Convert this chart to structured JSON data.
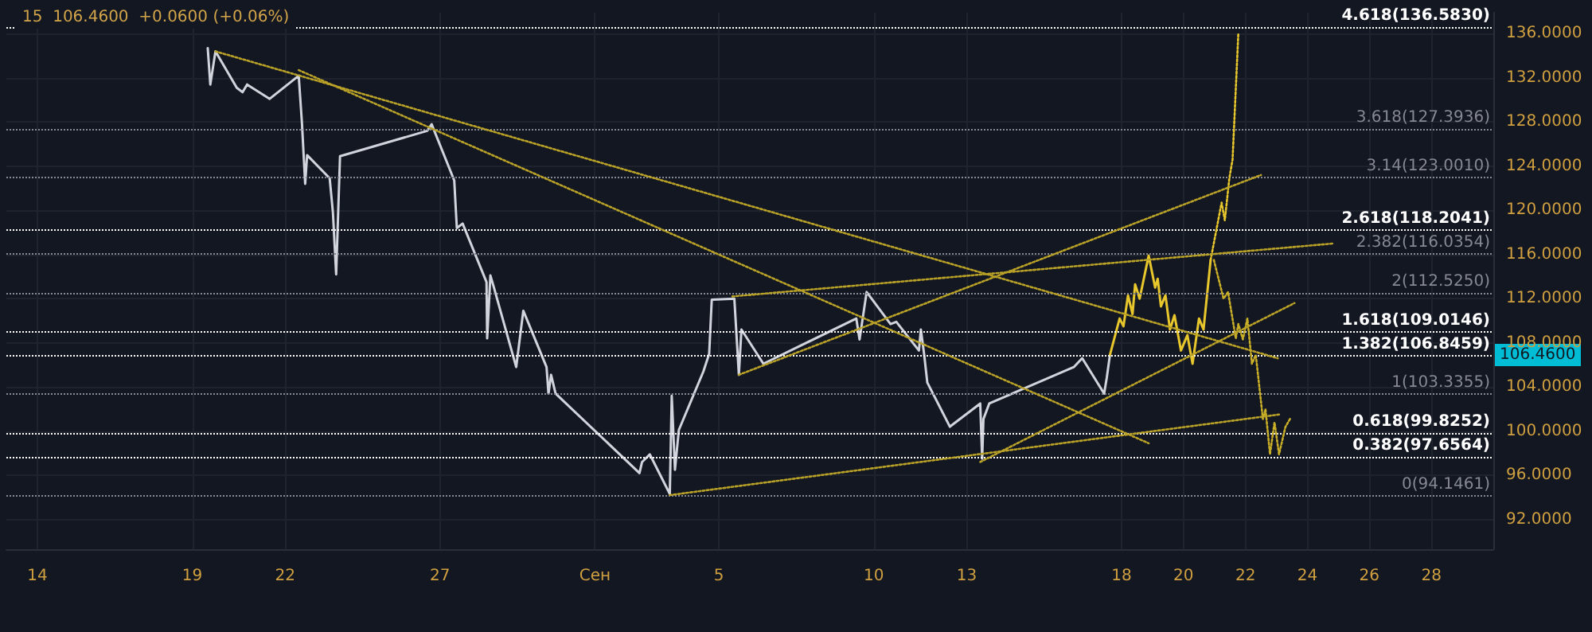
{
  "chart_data": {
    "type": "line",
    "title": "15  106.4600  +0.0600 (+0.06%)",
    "xlim": [
      "--08-13",
      "--09-30"
    ],
    "xticks": [
      {
        "value": "--08-14",
        "label": "14"
      },
      {
        "value": "--08-19",
        "label": "19"
      },
      {
        "value": "--08-22",
        "label": "22"
      },
      {
        "value": "--08-27",
        "label": "27"
      },
      {
        "value": "--09-01",
        "label": "Сен"
      },
      {
        "value": "--09-05",
        "label": "5"
      },
      {
        "value": "--09-10",
        "label": "10"
      },
      {
        "value": "--09-13",
        "label": "13"
      },
      {
        "value": "--09-18",
        "label": "18"
      },
      {
        "value": "--09-20",
        "label": "20"
      },
      {
        "value": "--09-22",
        "label": "22"
      },
      {
        "value": "--09-24",
        "label": "24"
      },
      {
        "value": "--09-26",
        "label": "26"
      },
      {
        "value": "--09-28",
        "label": "28"
      }
    ],
    "ylim": [
      89.3,
      137.9
    ],
    "yticks": [
      {
        "value": 92,
        "label": "92.0000"
      },
      {
        "value": 96,
        "label": "96.0000"
      },
      {
        "value": 100,
        "label": "100.0000"
      },
      {
        "value": 104,
        "label": "104.0000"
      },
      {
        "value": 108,
        "label": "108.0000"
      },
      {
        "value": 112,
        "label": "112.0000"
      },
      {
        "value": 116,
        "label": "116.0000"
      },
      {
        "value": 120,
        "label": "120.0000"
      },
      {
        "value": 124,
        "label": "124.0000"
      },
      {
        "value": 128,
        "label": "128.0000"
      },
      {
        "value": 132,
        "label": "132.0000"
      },
      {
        "value": 136,
        "label": "136.0000"
      }
    ],
    "grid": true,
    "marker": "none",
    "series": [
      {
        "color": "#d1d4dc",
        "line_style": "solid",
        "x": [
          "--08-19T12:00",
          "--08-19T14:00",
          "--08-19T18:00",
          "--08-20T10:30",
          "--08-20T15:00",
          "--08-20T18:30",
          "--08-21T12:00",
          "--08-22T10:30",
          "--08-22T13:00",
          "--08-22T15:30",
          "--08-22T17:00",
          "--08-23T10:30",
          "--08-23T13:00",
          "--08-23T15:30",
          "--08-23T18:30",
          "--08-26T14:00",
          "--08-26T17:30",
          "--08-27T11:00",
          "--08-27T13:00",
          "--08-27T17:30",
          "--08-28T12:00",
          "--08-28T12:30",
          "--08-28T15:00",
          "--08-28T17:30",
          "--08-29T11:00",
          "--08-29T16:30",
          "--08-30T10:30",
          "--08-30T12:00",
          "--08-30T14:00",
          "--08-30T17:30",
          "--09-02T10:30",
          "--09-02T12:30",
          "--09-02T18:30",
          "--09-03T10:00",
          "--09-03T11:30",
          "--09-03T14:00",
          "--09-03T17:00",
          "--09-04T12:00",
          "--09-04T16:30",
          "--09-04T18:30",
          "--09-05T12:00",
          "--09-05T15:30",
          "--09-05T17:30",
          "--09-06T10:30",
          "--09-09T10:30",
          "--09-09T13:00",
          "--09-09T18:30",
          "--09-10T13:00",
          "--09-10T17:30",
          "--09-11T11:00",
          "--09-11T12:30",
          "--09-11T15:00",
          "--09-11T17:30",
          "--09-12T11:00",
          "--09-13T10:30",
          "--09-13T12:00",
          "--09-13T13:00",
          "--09-13T17:30",
          "--09-16T11:00",
          "--09-16T17:30",
          "--09-17T10:30",
          "--09-17T12:30",
          "--09-17T15:00"
        ],
        "values": [
          134.7,
          131.4,
          134.4,
          131.1,
          130.7,
          131.4,
          130.1,
          132.2,
          127.9,
          122.4,
          125,
          122.9,
          119.8,
          114.2,
          124.9,
          127.2,
          127.8,
          122.7,
          118.4,
          118.8,
          113.5,
          108.4,
          114.1,
          113.1,
          105.8,
          110.9,
          105.8,
          103.4,
          105.1,
          103.4,
          96.2,
          97.2,
          97.9,
          94.3,
          103.2,
          96.5,
          100.1,
          105.4,
          107,
          111.9,
          112,
          105.1,
          109.2,
          106.1,
          110.2,
          108.3,
          112.6,
          109.7,
          109.9,
          107.3,
          109.2,
          107,
          104.4,
          100.4,
          102.5,
          97.5,
          101.1,
          102.5,
          105.8,
          106.6,
          103.4,
          104.8,
          106.9
        ]
      },
      {
        "color": "#e8c72c",
        "line_style": "solid",
        "x": [
          "--09-17T15:00",
          "--09-17T22:30",
          "--09-18T01:30",
          "--09-18T05:00",
          "--09-18T08:30",
          "--09-18T10:30",
          "--09-18T14:00",
          "--09-18T21:00",
          "--09-19T02:00",
          "--09-19T04:00",
          "--09-19T06:30",
          "--09-19T10:00",
          "--09-19T13:30",
          "--09-19T17:00",
          "--09-19T22:00",
          "--09-20T03:00",
          "--09-20T07:00",
          "--09-20T12:00",
          "--09-20T15:30",
          "--09-20T21:00"
        ],
        "values": [
          106.9,
          110.2,
          109.5,
          112.3,
          110.6,
          113.3,
          112,
          115.9,
          113,
          113.8,
          111.3,
          112.3,
          109.2,
          110.5,
          107.3,
          108.7,
          106.1,
          110.2,
          109.2,
          115.5
        ]
      },
      {
        "color": "#e8c72c",
        "line_style": "dotted",
        "x": [
          "--09-20T21:00",
          "--09-21T05:30",
          "--09-21T08:00",
          "--09-21T11:30",
          "--09-21T14:00",
          "--09-21T18:30"
        ],
        "values": [
          115.5,
          120.7,
          119.1,
          122.9,
          124.6,
          136.1
        ]
      },
      {
        "color": "#c9ae28",
        "line_style": "dotted",
        "x": [
          "--09-20T23:30",
          "--09-21T07:00",
          "--09-21T10:30",
          "--09-21T16:30",
          "--09-21T18:30",
          "--09-21T22:00",
          "--09-22T01:30",
          "--09-22T05:00",
          "--09-22T08:00",
          "--09-22T13:30",
          "--09-22T15:30",
          "--09-22T19:00",
          "--09-22T22:30",
          "--09-23T02:00",
          "--09-23T07:00",
          "--09-23T10:30"
        ],
        "values": [
          115.5,
          112,
          112.6,
          108.4,
          109.7,
          108.3,
          110.2,
          106.1,
          106.9,
          101.1,
          102,
          97.9,
          100.8,
          97.9,
          100.4,
          101.1
        ]
      },
      {
        "color": "#b9a227",
        "line_style": "dotted",
        "x": [
          "--08-19T18:00",
          "--09-23T01:00"
        ],
        "values": [
          134.4,
          106.6
        ]
      },
      {
        "color": "#b9a227",
        "line_style": "dotted",
        "x": [
          "--08-22T10:30",
          "--09-18T21:00"
        ],
        "values": [
          132.7,
          98.9
        ]
      },
      {
        "color": "#b9a227",
        "line_style": "dotted",
        "x": [
          "--09-03T10:00",
          "--09-23T02:00"
        ],
        "values": [
          94.2,
          101.5
        ]
      },
      {
        "color": "#b9a227",
        "line_style": "dotted",
        "x": [
          "--09-13T10:30",
          "--09-23T14:00"
        ],
        "values": [
          97.2,
          111.6
        ]
      },
      {
        "color": "#b9a227",
        "line_style": "dotted",
        "x": [
          "--09-05T10:30",
          "--09-24T20:30"
        ],
        "values": [
          112.2,
          117
        ]
      },
      {
        "color": "#b9a227",
        "line_style": "dotted",
        "x": [
          "--09-05T15:30",
          "--09-22T12:00"
        ],
        "values": [
          105.1,
          123.2
        ]
      }
    ],
    "ref_lines": [
      {
        "axis": "y",
        "value": 136.583,
        "label": "4.618(136.5830)",
        "color": "#ffffff",
        "line_style": "dotted"
      },
      {
        "axis": "y",
        "value": 127.3936,
        "label": "3.618(127.3936)",
        "color": "#868993",
        "line_style": "dotted"
      },
      {
        "axis": "y",
        "value": 123.001,
        "label": "3.14(123.0010)",
        "color": "#868993",
        "line_style": "dotted"
      },
      {
        "axis": "y",
        "value": 118.2041,
        "label": "2.618(118.2041)",
        "color": "#ffffff",
        "line_style": "dotted"
      },
      {
        "axis": "y",
        "value": 116.0354,
        "label": "2.382(116.0354)",
        "color": "#868993",
        "line_style": "dotted"
      },
      {
        "axis": "y",
        "value": 112.525,
        "label": "2(112.5250)",
        "color": "#868993",
        "line_style": "dotted"
      },
      {
        "axis": "y",
        "value": 109.0146,
        "label": "1.618(109.0146)",
        "color": "#ffffff",
        "line_style": "dotted"
      },
      {
        "axis": "y",
        "value": 106.8459,
        "label": "1.382(106.8459)",
        "color": "#ffffff",
        "line_style": "dotted"
      },
      {
        "axis": "y",
        "value": 103.3355,
        "label": "1(103.3355)",
        "color": "#868993",
        "line_style": "dotted"
      },
      {
        "axis": "y",
        "value": 99.8252,
        "label": "0.618(99.8252)",
        "color": "#ffffff",
        "line_style": "dotted"
      },
      {
        "axis": "y",
        "value": 97.6564,
        "label": "0.382(97.6564)",
        "color": "#ffffff",
        "line_style": "dotted"
      },
      {
        "axis": "y",
        "value": 94.1461,
        "label": "0(94.1461)",
        "color": "#868993",
        "line_style": "dotted"
      }
    ],
    "annotations": [
      "106.4600"
    ]
  }
}
